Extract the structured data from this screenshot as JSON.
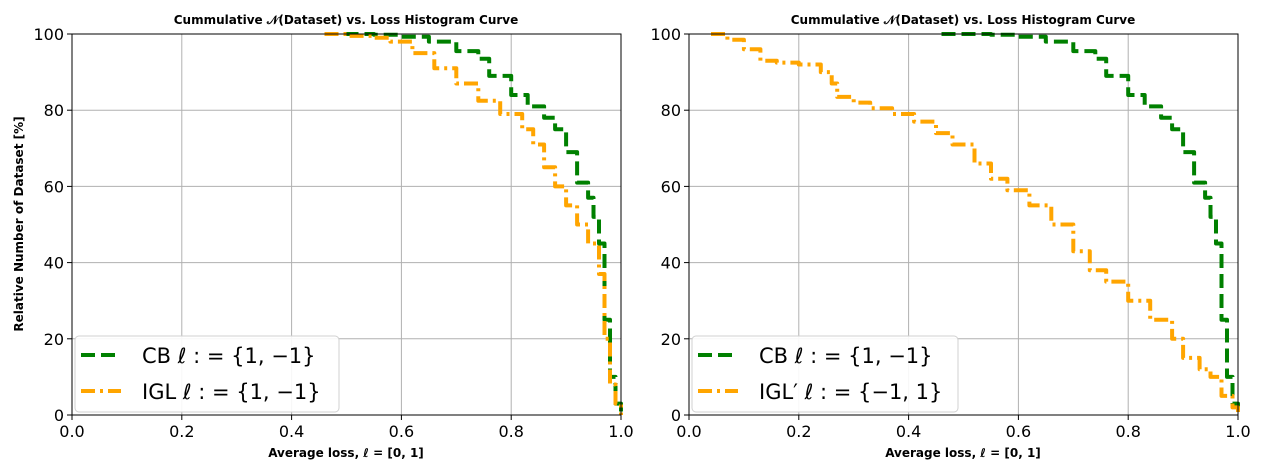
{
  "chart_data": [
    {
      "type": "line",
      "title": "Cummulative 𝒩(Dataset) vs. Loss Histogram Curve",
      "xlabel": "Average loss,  ℓ = [0, 1]",
      "ylabel": "Relative Number of Dataset [%]",
      "xlim": [
        0,
        1
      ],
      "ylim": [
        0,
        100
      ],
      "xticks": [
        "0.0",
        "0.2",
        "0.4",
        "0.6",
        "0.8",
        "1.0"
      ],
      "yticks": [
        "0",
        "20",
        "40",
        "60",
        "80",
        "100"
      ],
      "grid": true,
      "legend_position": "lower-left",
      "series": [
        {
          "name": "CB ℓ : = {1, −1}",
          "color": "#008000",
          "style": "dashed",
          "x": [
            0.46,
            0.5,
            0.55,
            0.6,
            0.65,
            0.7,
            0.74,
            0.76,
            0.8,
            0.83,
            0.86,
            0.88,
            0.9,
            0.92,
            0.94,
            0.95,
            0.96,
            0.97,
            0.98,
            0.99,
            1.0
          ],
          "y": [
            100,
            100,
            99.8,
            99.3,
            98,
            95.5,
            93.5,
            89,
            84,
            81,
            78,
            75,
            69,
            61,
            57,
            52,
            45,
            25,
            10,
            3,
            0
          ]
        },
        {
          "name": "IGL ℓ : = {1, −1}",
          "color": "#FFA500",
          "style": "dashdot",
          "x": [
            0.46,
            0.5,
            0.55,
            0.58,
            0.62,
            0.66,
            0.7,
            0.74,
            0.78,
            0.82,
            0.84,
            0.86,
            0.88,
            0.9,
            0.92,
            0.94,
            0.96,
            0.97,
            0.98,
            0.99,
            1.0
          ],
          "y": [
            100,
            99.5,
            99,
            98,
            95,
            91,
            87,
            82.5,
            79,
            75,
            71,
            65,
            60,
            55,
            50,
            45,
            37,
            20,
            8,
            3,
            0
          ]
        }
      ]
    },
    {
      "type": "line",
      "title": "Cummulative 𝒩(Dataset) vs. Loss Histogram Curve",
      "xlabel": "Average loss,  ℓ = [0, 1]",
      "ylabel": "",
      "xlim": [
        0,
        1
      ],
      "ylim": [
        0,
        100
      ],
      "xticks": [
        "0.0",
        "0.2",
        "0.4",
        "0.6",
        "0.8",
        "1.0"
      ],
      "yticks": [
        "0",
        "20",
        "40",
        "60",
        "80",
        "100"
      ],
      "grid": true,
      "legend_position": "lower-left",
      "series": [
        {
          "name": "CB ℓ : = {1, −1}",
          "color": "#008000",
          "style": "dashed",
          "x": [
            0.46,
            0.5,
            0.55,
            0.6,
            0.65,
            0.7,
            0.74,
            0.76,
            0.8,
            0.83,
            0.86,
            0.88,
            0.9,
            0.92,
            0.94,
            0.95,
            0.96,
            0.97,
            0.98,
            0.99,
            1.0
          ],
          "y": [
            100,
            100,
            99.8,
            99.3,
            98,
            95.5,
            93.5,
            89,
            84,
            81,
            78,
            75,
            69,
            61,
            57,
            52,
            45,
            25,
            10,
            3,
            0
          ]
        },
        {
          "name": "IGL′ ℓ : = {−1, 1}",
          "color": "#FFA500",
          "style": "dashdot",
          "x": [
            0.04,
            0.07,
            0.1,
            0.13,
            0.16,
            0.2,
            0.24,
            0.26,
            0.27,
            0.3,
            0.33,
            0.37,
            0.41,
            0.45,
            0.48,
            0.52,
            0.55,
            0.58,
            0.62,
            0.66,
            0.7,
            0.73,
            0.76,
            0.8,
            0.84,
            0.88,
            0.9,
            0.93,
            0.95,
            0.97,
            0.99,
            1.0
          ],
          "y": [
            100,
            98.5,
            96,
            93,
            92.5,
            92,
            90,
            87,
            83.5,
            82,
            80.5,
            79,
            77,
            74,
            71,
            66,
            62,
            59,
            55,
            50,
            43,
            38,
            35,
            30,
            25,
            20,
            15,
            12,
            10,
            5,
            2,
            0
          ]
        }
      ]
    }
  ]
}
